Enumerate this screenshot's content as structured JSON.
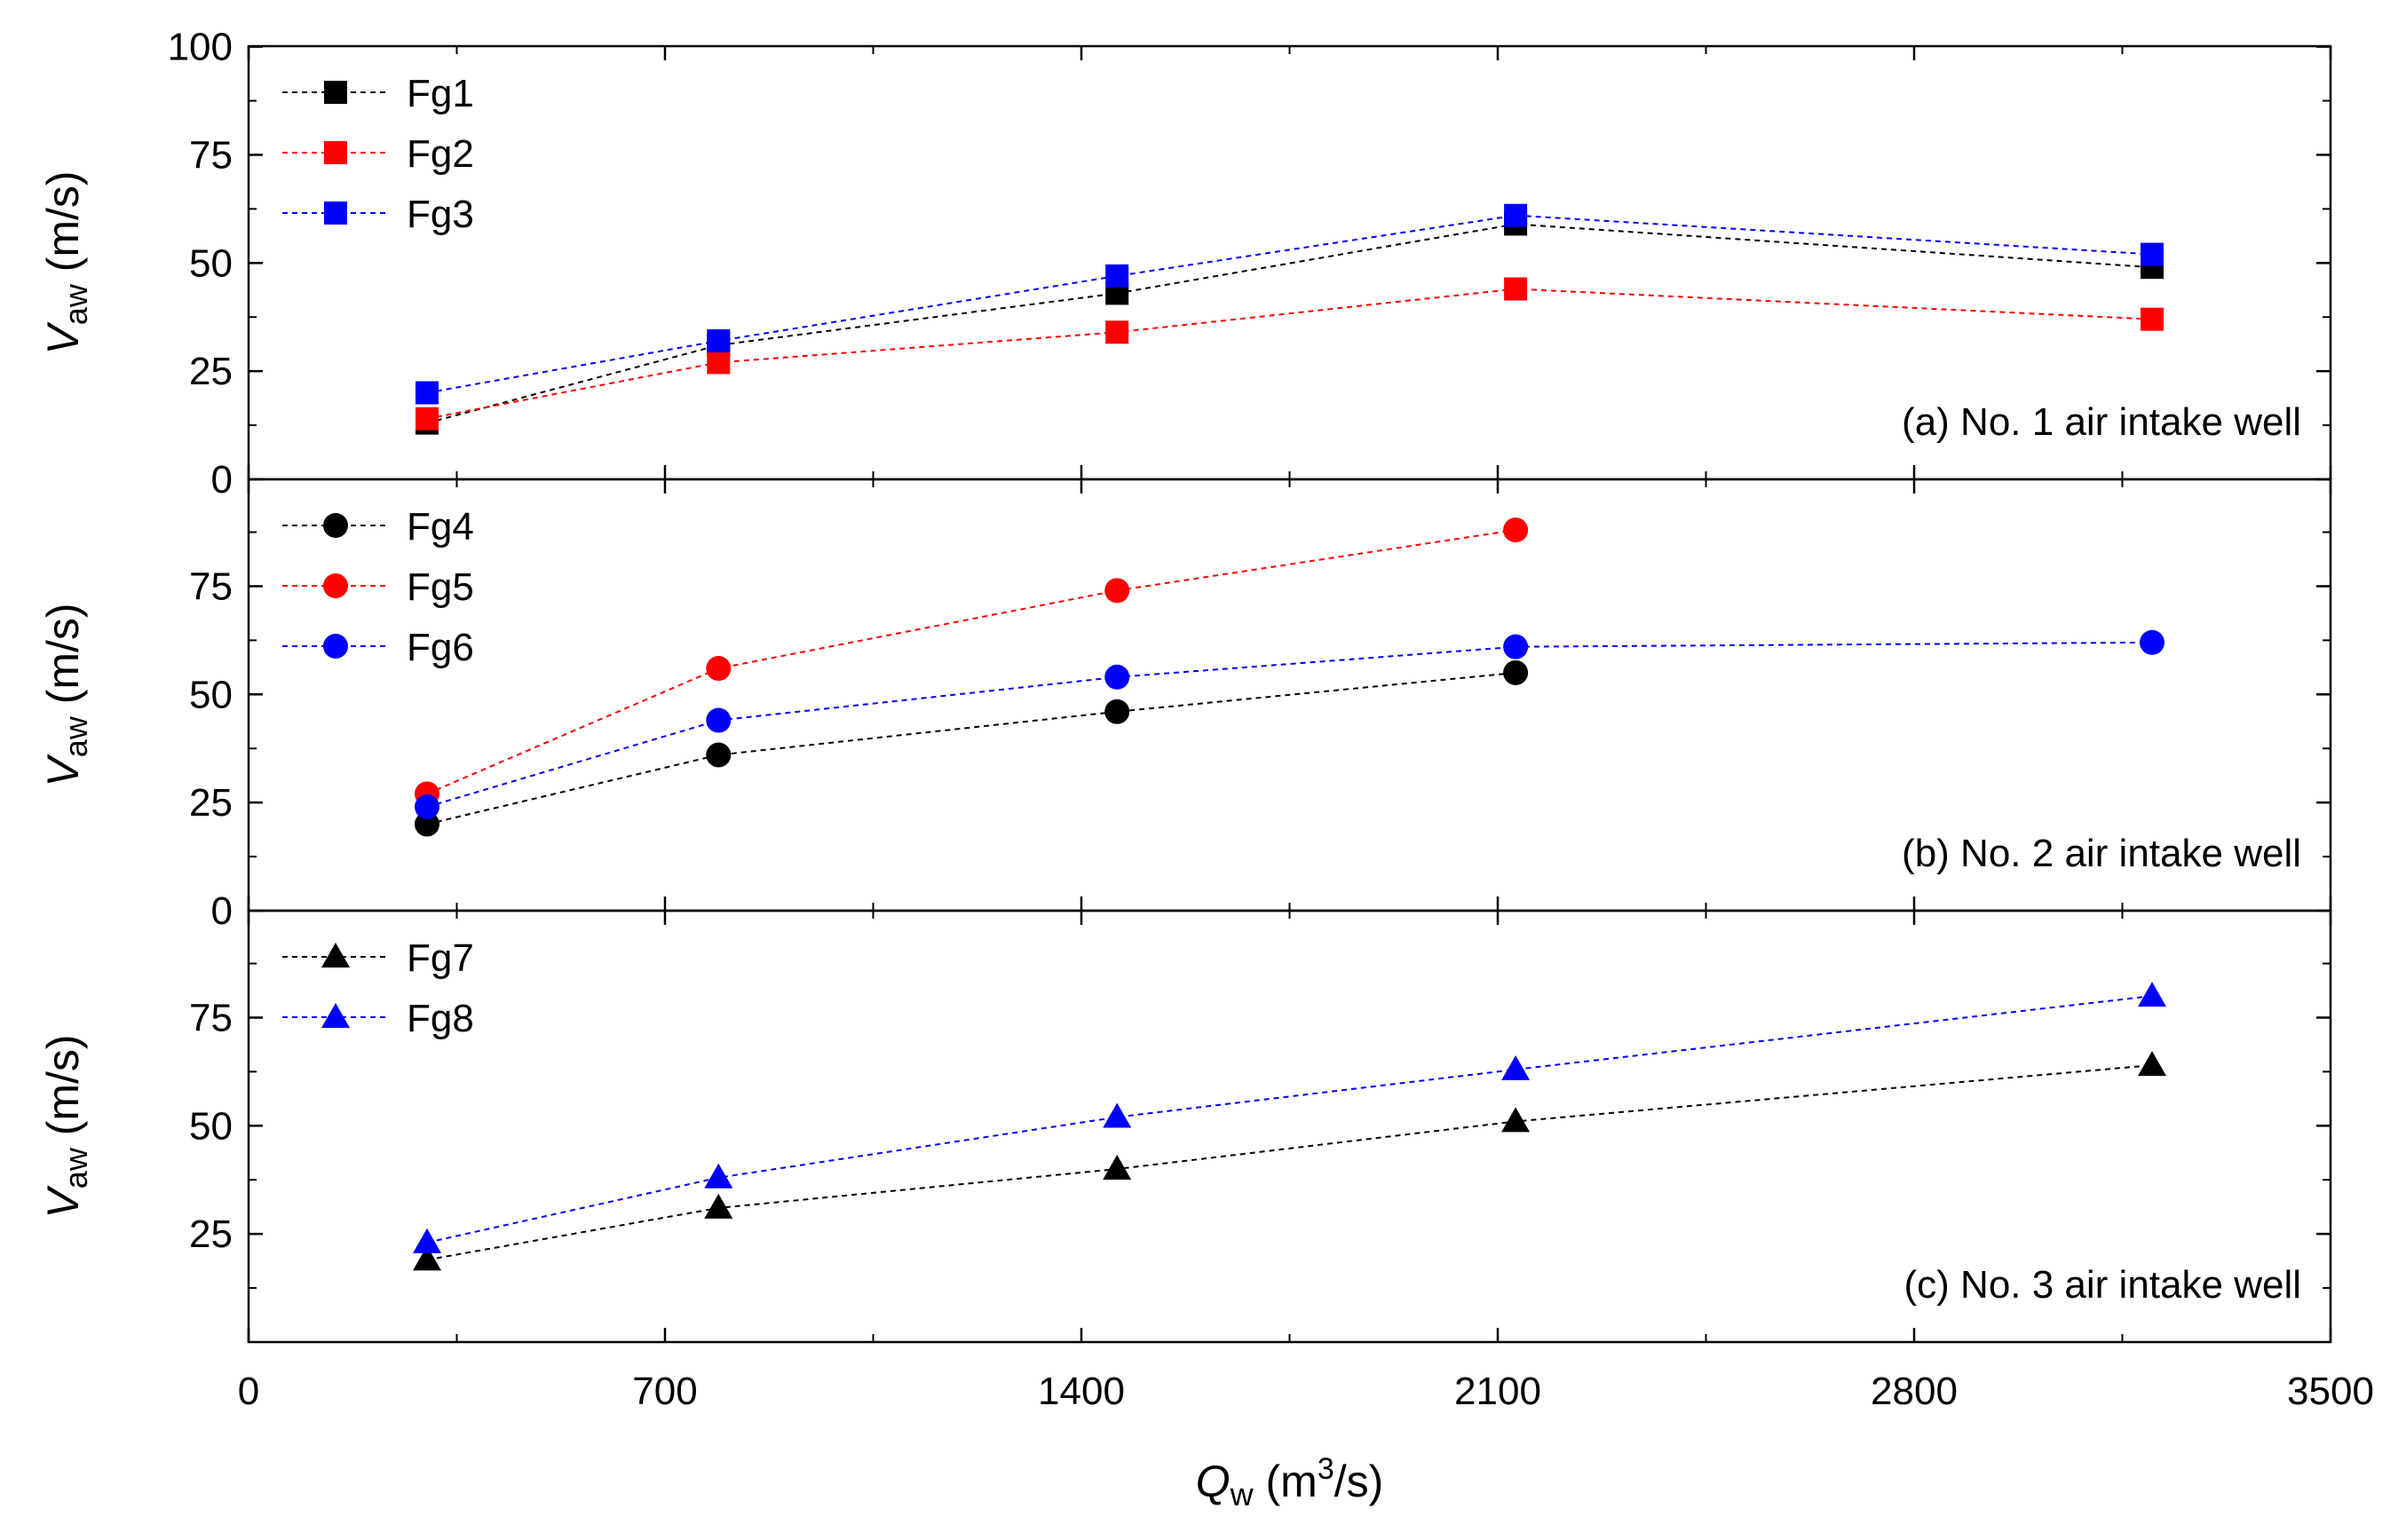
{
  "chart_data": [
    {
      "type": "scatter",
      "panel_label": "(a) No. 1 air intake well",
      "ylabel": "V",
      "ylabel_sub": "aw",
      "ylabel_unit": " (m/s)",
      "ylim": [
        0,
        100
      ],
      "yticks": [
        "0",
        "25",
        "50",
        "75",
        "100"
      ],
      "marker": "square",
      "series": [
        {
          "name": "Fg1",
          "color": "#000000",
          "x": [
            300,
            790,
            1460,
            2130,
            3200
          ],
          "y": [
            13,
            31,
            43,
            59,
            49
          ]
        },
        {
          "name": "Fg2",
          "color": "#ff0000",
          "x": [
            300,
            790,
            1460,
            2130,
            3200
          ],
          "y": [
            14,
            27,
            34,
            44,
            37
          ]
        },
        {
          "name": "Fg3",
          "color": "#0000ff",
          "x": [
            300,
            790,
            1460,
            2130,
            3200
          ],
          "y": [
            20,
            32,
            47,
            61,
            52
          ]
        }
      ]
    },
    {
      "type": "scatter",
      "panel_label": "(b) No. 2 air intake well",
      "ylabel": "V",
      "ylabel_sub": "aw",
      "ylabel_unit": " (m/s)",
      "ylim": [
        0,
        100
      ],
      "yticks": [
        "0",
        "25",
        "50",
        "75"
      ],
      "marker": "circle",
      "series": [
        {
          "name": "Fg4",
          "color": "#000000",
          "x": [
            300,
            790,
            1460,
            2130
          ],
          "y": [
            20,
            36,
            46,
            55
          ]
        },
        {
          "name": "Fg5",
          "color": "#ff0000",
          "x": [
            300,
            790,
            1460,
            2130
          ],
          "y": [
            27,
            56,
            74,
            88
          ]
        },
        {
          "name": "Fg6",
          "color": "#0000ff",
          "x": [
            300,
            790,
            1460,
            2130,
            3200
          ],
          "y": [
            24,
            44,
            54,
            61,
            62
          ]
        }
      ]
    },
    {
      "type": "scatter",
      "panel_label": "(c) No. 3 air intake well",
      "ylabel": "V",
      "ylabel_sub": "aw",
      "ylabel_unit": " (m/s)",
      "ylim": [
        0,
        100
      ],
      "yticks": [
        "25",
        "50",
        "75"
      ],
      "marker": "triangle",
      "series": [
        {
          "name": "Fg7",
          "color": "#000000",
          "x": [
            300,
            790,
            1460,
            2130,
            3200
          ],
          "y": [
            19,
            31,
            40,
            51,
            64
          ]
        },
        {
          "name": "Fg8",
          "color": "#0000ff",
          "x": [
            300,
            790,
            1460,
            2130,
            3200
          ],
          "y": [
            23,
            38,
            52,
            63,
            80
          ]
        }
      ]
    }
  ],
  "x_axis": {
    "label": "Q",
    "label_sub": "w",
    "label_unit": " (m",
    "label_sup": "3",
    "label_end": "/s)",
    "xlim": [
      0,
      3500
    ],
    "ticks": [
      0,
      700,
      1400,
      2100,
      2800,
      3500
    ],
    "tick_labels": [
      "0",
      "700",
      "1400",
      "2100",
      "2800",
      "3500"
    ],
    "minor_ticks": [
      350,
      1050,
      1750,
      2450,
      3150
    ]
  },
  "style": {
    "grid": false,
    "legend_placement": "top-left",
    "line_style": "dashed"
  }
}
